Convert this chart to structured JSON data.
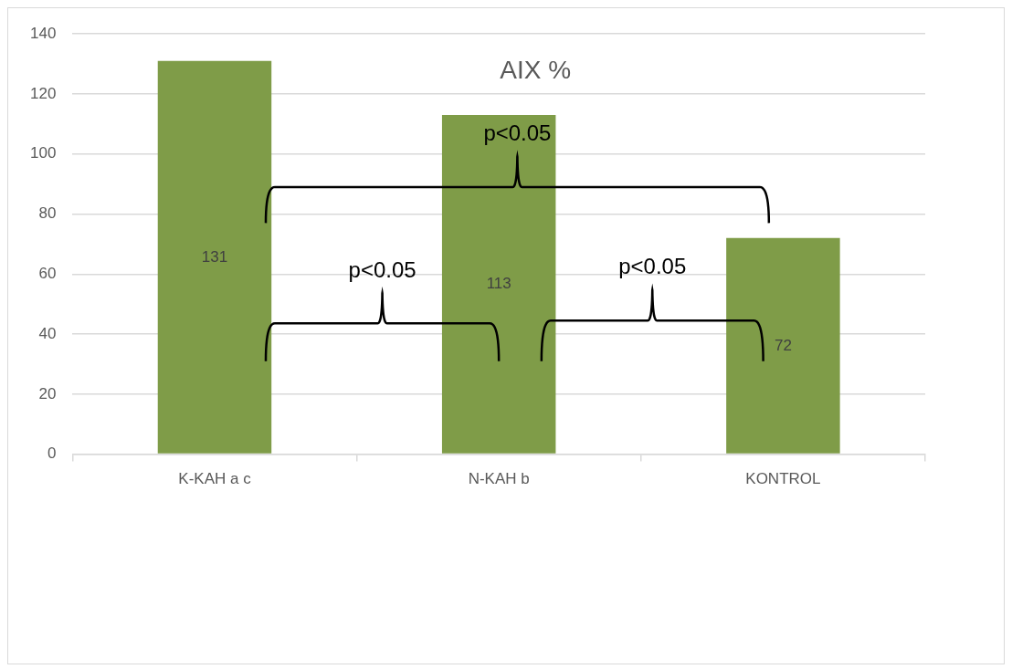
{
  "chart_data": {
    "type": "bar",
    "title": "AIX %",
    "categories": [
      "K-KAH a c",
      "N-KAH b",
      "KONTROL"
    ],
    "values": [
      131,
      113,
      72
    ],
    "color": "#7f9c48",
    "ylim": [
      0,
      140
    ],
    "yticks": [
      0,
      20,
      40,
      60,
      80,
      100,
      120,
      140
    ],
    "grid": "y",
    "data_labels": true,
    "annotations": [
      "p<0.05",
      "p<0.05",
      "p<0.05"
    ]
  }
}
